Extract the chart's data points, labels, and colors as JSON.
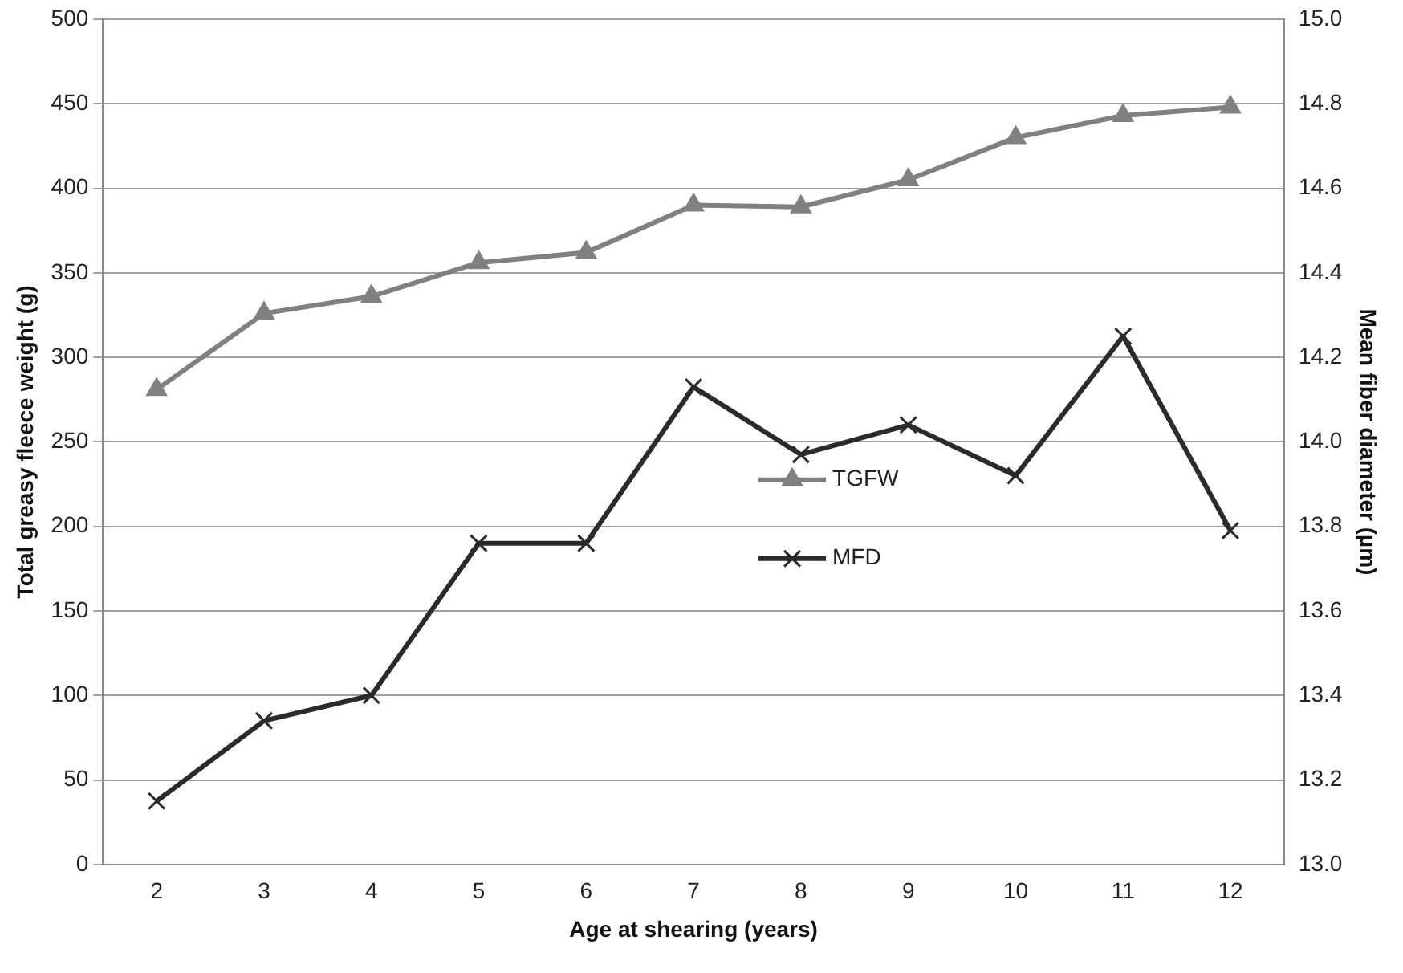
{
  "chart_data": {
    "type": "line",
    "xlabel": "Age at shearing (years)",
    "ylabel": "Total greasy fleece weight (g)",
    "y2label": "Mean fiber diameter (µm)",
    "categories": [
      "2",
      "3",
      "4",
      "5",
      "6",
      "7",
      "8",
      "9",
      "10",
      "11",
      "12"
    ],
    "series": [
      {
        "name": "TGFW",
        "color": "#808080",
        "marker": "triangle",
        "values": [
          281,
          326,
          336,
          356,
          362,
          390,
          389,
          405,
          430,
          443,
          448
        ]
      },
      {
        "name": "MFD",
        "color": "#2b2b2b",
        "marker": "cross",
        "axis": "y2",
        "values": [
          13.15,
          13.34,
          13.4,
          13.76,
          13.76,
          14.13,
          13.97,
          14.04,
          13.92,
          14.25,
          13.79
        ]
      }
    ],
    "ylim": [
      0,
      500
    ],
    "yticks": [
      0,
      50,
      100,
      150,
      200,
      250,
      300,
      350,
      400,
      450,
      500
    ],
    "y2lim": [
      13.0,
      15.0
    ],
    "y2ticks": [
      {
        "value": 13,
        "label": "13.0"
      },
      {
        "value": 13.2,
        "label": "13.2"
      },
      {
        "value": 13.4,
        "label": "13.4"
      },
      {
        "value": 13.6,
        "label": "13.6"
      },
      {
        "value": 13.8,
        "label": "13.8"
      },
      {
        "value": 14,
        "label": "14.0"
      },
      {
        "value": 14.2,
        "label": "14.2"
      },
      {
        "value": 14.4,
        "label": "14.4"
      },
      {
        "value": 14.6,
        "label": "14.6"
      },
      {
        "value": 14.8,
        "label": "14.8"
      },
      {
        "value": 15,
        "label": "15.0"
      }
    ],
    "grid": "y",
    "legend": "center"
  }
}
